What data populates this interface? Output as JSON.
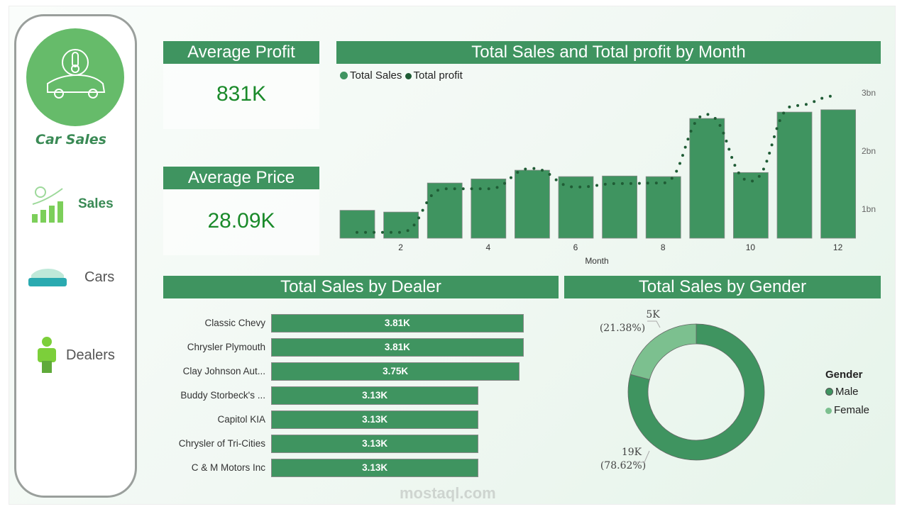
{
  "sidebar": {
    "brand": "Car Sales",
    "items": [
      {
        "label": "Sales",
        "icon": "sales-chart-icon",
        "active": true
      },
      {
        "label": "Cars",
        "icon": "car-icon",
        "active": false
      },
      {
        "label": "Dealers",
        "icon": "person-icon",
        "active": false
      }
    ]
  },
  "kpis": {
    "avg_profit": {
      "title": "Average Profit",
      "value": "831K"
    },
    "avg_price": {
      "title": "Average Price",
      "value": "28.09K"
    }
  },
  "colors": {
    "accent": "#3f9460",
    "light": "#7cc08f",
    "profit": "#1f5c35",
    "kpi": "#1a8a2a"
  },
  "watermark": "mostaql.com",
  "chart_data": [
    {
      "type": "bar",
      "title": "Total Sales and Total profit by Month",
      "xlabel": "Month",
      "ylabel": "",
      "x": [
        1,
        2,
        3,
        4,
        5,
        6,
        7,
        8,
        9,
        10,
        11,
        12
      ],
      "x_ticks": [
        "2",
        "4",
        "6",
        "8",
        "10",
        "12"
      ],
      "y_ticks": [
        "1bn",
        "2bn",
        "3bn"
      ],
      "ylim": [
        0.5,
        3.1
      ],
      "legend": "top-left",
      "series": [
        {
          "name": "Total Sales",
          "type": "bar",
          "values": [
            0.98,
            0.95,
            1.45,
            1.52,
            1.67,
            1.56,
            1.57,
            1.56,
            2.56,
            1.63,
            2.67,
            2.71
          ]
        },
        {
          "name": "Total profit",
          "type": "line",
          "values": [
            0.6,
            0.6,
            1.35,
            1.35,
            1.7,
            1.38,
            1.44,
            1.45,
            2.63,
            1.48,
            2.78,
            2.95
          ]
        }
      ]
    },
    {
      "type": "bar",
      "orientation": "horizontal",
      "title": "Total Sales by Dealer",
      "categories": [
        "Classic Chevy",
        "Chrysler Plymouth",
        "Clay Johnson Aut...",
        "Buddy Storbeck's ...",
        "Capitol KIA",
        "Chrysler of Tri-Cities",
        "C & M Motors Inc"
      ],
      "values": [
        3.81,
        3.81,
        3.75,
        3.13,
        3.13,
        3.13,
        3.13
      ],
      "labels": [
        "3.81K",
        "3.81K",
        "3.75K",
        "3.13K",
        "3.13K",
        "3.13K",
        "3.13K"
      ]
    },
    {
      "type": "pie",
      "donut": true,
      "title": "Total Sales by Gender",
      "legend_title": "Gender",
      "legend": "right",
      "categories": [
        "Male",
        "Female"
      ],
      "values": [
        19,
        5
      ],
      "percents": [
        78.62,
        21.38
      ],
      "labels": [
        {
          "value": "19K",
          "pct": "(78.62%)"
        },
        {
          "value": "5K",
          "pct": "(21.38%)"
        }
      ]
    }
  ]
}
